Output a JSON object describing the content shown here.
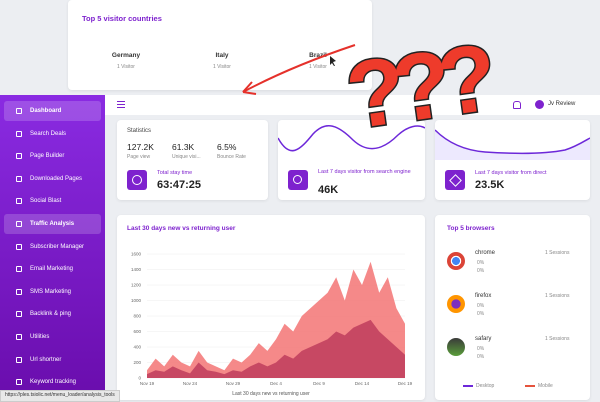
{
  "popup": {
    "title": "Top 5 visitor countries",
    "countries": [
      {
        "name": "Germany",
        "visitors": "1 Visitor"
      },
      {
        "name": "Italy",
        "visitors": "1 Visitor"
      },
      {
        "name": "Brazil",
        "visitors": "1 Visitor"
      }
    ]
  },
  "overlay": "???",
  "sidebar": {
    "items": [
      "Dashboard",
      "Search Deals",
      "Page Builder",
      "Downloaded Pages",
      "Social Blast",
      "Traffic Analysis",
      "Subscriber Manager",
      "Email Marketing",
      "SMS Marketing",
      "Backlink & ping",
      "Utilities",
      "Url shortner",
      "Keyword tracking"
    ]
  },
  "topbar": {
    "user": "Jv Review"
  },
  "statistics": {
    "title": "Statistics",
    "metrics": [
      {
        "value": "127.2K",
        "label": "Page view"
      },
      {
        "value": "61.3K",
        "label": "Unique visi..."
      },
      {
        "value": "6.5%",
        "label": "Bounce Rate"
      }
    ],
    "stay_label": "Total stay time",
    "stay_value": "63:47:25"
  },
  "search_card": {
    "label": "Last 7 days visitor from search engine",
    "value": "46K"
  },
  "direct_card": {
    "label": "Last 7 days visitor from direct",
    "value": "23.5K"
  },
  "chart": {
    "type": "area",
    "title": "Last 30 days new vs returning user",
    "x_label": "Last 30 days new vs returning user",
    "categories": [
      "Nov 19",
      null,
      null,
      null,
      null,
      "Nov 24",
      null,
      null,
      null,
      null,
      "Nov 29",
      null,
      null,
      null,
      null,
      "Dec 4",
      null,
      null,
      null,
      null,
      "Dec 9",
      null,
      null,
      null,
      null,
      "Dec 14",
      null,
      null,
      null,
      null,
      "Dec 19"
    ],
    "series": [
      {
        "color": "#f47c7c",
        "values": [
          100,
          250,
          150,
          300,
          200,
          150,
          350,
          200,
          150,
          100,
          250,
          200,
          300,
          450,
          350,
          500,
          700,
          600,
          800,
          900,
          1000,
          1100,
          1300,
          1000,
          1400,
          1200,
          1500,
          1100,
          1300,
          900,
          700
        ]
      },
      {
        "color": "#c2415f",
        "values": [
          50,
          100,
          80,
          150,
          100,
          60,
          200,
          100,
          80,
          50,
          100,
          80,
          150,
          200,
          150,
          200,
          300,
          250,
          350,
          400,
          450,
          500,
          600,
          550,
          650,
          700,
          750,
          600,
          500,
          400,
          300
        ]
      }
    ],
    "ylim": [
      0,
      1600
    ],
    "yticks": [
      0,
      200,
      400,
      600,
      800,
      1000,
      1200,
      1400,
      1600
    ],
    "grid": true
  },
  "browsers": {
    "title": "Top 5 browsers",
    "items": [
      {
        "name": "chrome",
        "p1": "0%",
        "p2": "0%",
        "sessions": "1 Sessions"
      },
      {
        "name": "firefox",
        "p1": "0%",
        "p2": "0%",
        "sessions": "1 Sessions"
      },
      {
        "name": "safary",
        "p1": "0%",
        "p2": "0%",
        "sessions": "1 Sessions"
      }
    ],
    "legend": [
      {
        "name": "Desktop",
        "color": "#6d28d9"
      },
      {
        "name": "Mobile",
        "color": "#e5533d"
      }
    ]
  },
  "status_url": "https://ples.tsiolic.net/menu_loader/analysis_tools"
}
